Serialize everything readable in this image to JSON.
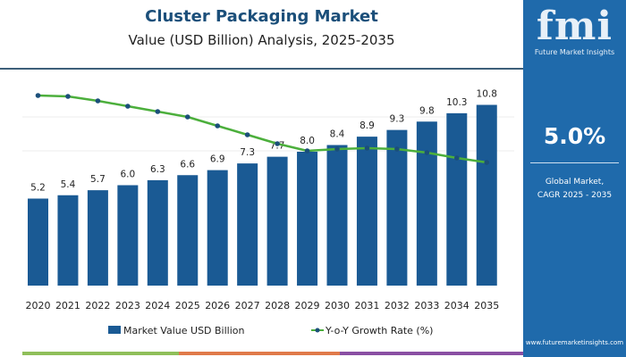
{
  "header": {
    "title": "Cluster Packaging Market",
    "subtitle": "Value (USD Billion) Analysis, 2025-2035"
  },
  "side_panel": {
    "logo": "fmi",
    "logo_subtitle": "Future Market Insights",
    "cagr_value": "5.0%",
    "cagr_label_line1": "Global Market,",
    "cagr_label_line2": "CAGR 2025 - 2035",
    "url": "www.futuremarketinsights.com",
    "background": "#1f6aab"
  },
  "chart_data": {
    "type": "bar",
    "categories": [
      "2020",
      "2021",
      "2022",
      "2023",
      "2024",
      "2025",
      "2026",
      "2027",
      "2028",
      "2029",
      "2030",
      "2031",
      "2032",
      "2033",
      "2034",
      "2035"
    ],
    "series": [
      {
        "name": "Market Value USD Billion",
        "type": "bar",
        "color": "#1a5a94",
        "values": [
          5.2,
          5.4,
          5.7,
          6.0,
          6.3,
          6.6,
          6.9,
          7.3,
          7.7,
          8.0,
          8.4,
          8.9,
          9.3,
          9.8,
          10.3,
          10.8
        ],
        "labels": [
          "5.2",
          "5.4",
          "5.7",
          "6.0",
          "6.3",
          "6.6",
          "6.9",
          "7.3",
          "7.7",
          "8.0",
          "8.4",
          "8.9",
          "9.3",
          "9.8",
          "10.3",
          "10.8"
        ]
      },
      {
        "name": "Y-o-Y Growth Rate (%)",
        "type": "line",
        "color": "#4caf3c",
        "marker_color": "#1b4f7a",
        "values": [
          6.0,
          5.98,
          5.88,
          5.76,
          5.64,
          5.52,
          5.32,
          5.12,
          4.92,
          4.76,
          4.8,
          4.82,
          4.8,
          4.72,
          4.6,
          4.5
        ]
      }
    ],
    "ylim": [
      0,
      11
    ],
    "grid": true,
    "legend": "bottom"
  },
  "footer_stripe_colors": [
    "#8fbf5a",
    "#e07a4a",
    "#8a4fa3"
  ]
}
